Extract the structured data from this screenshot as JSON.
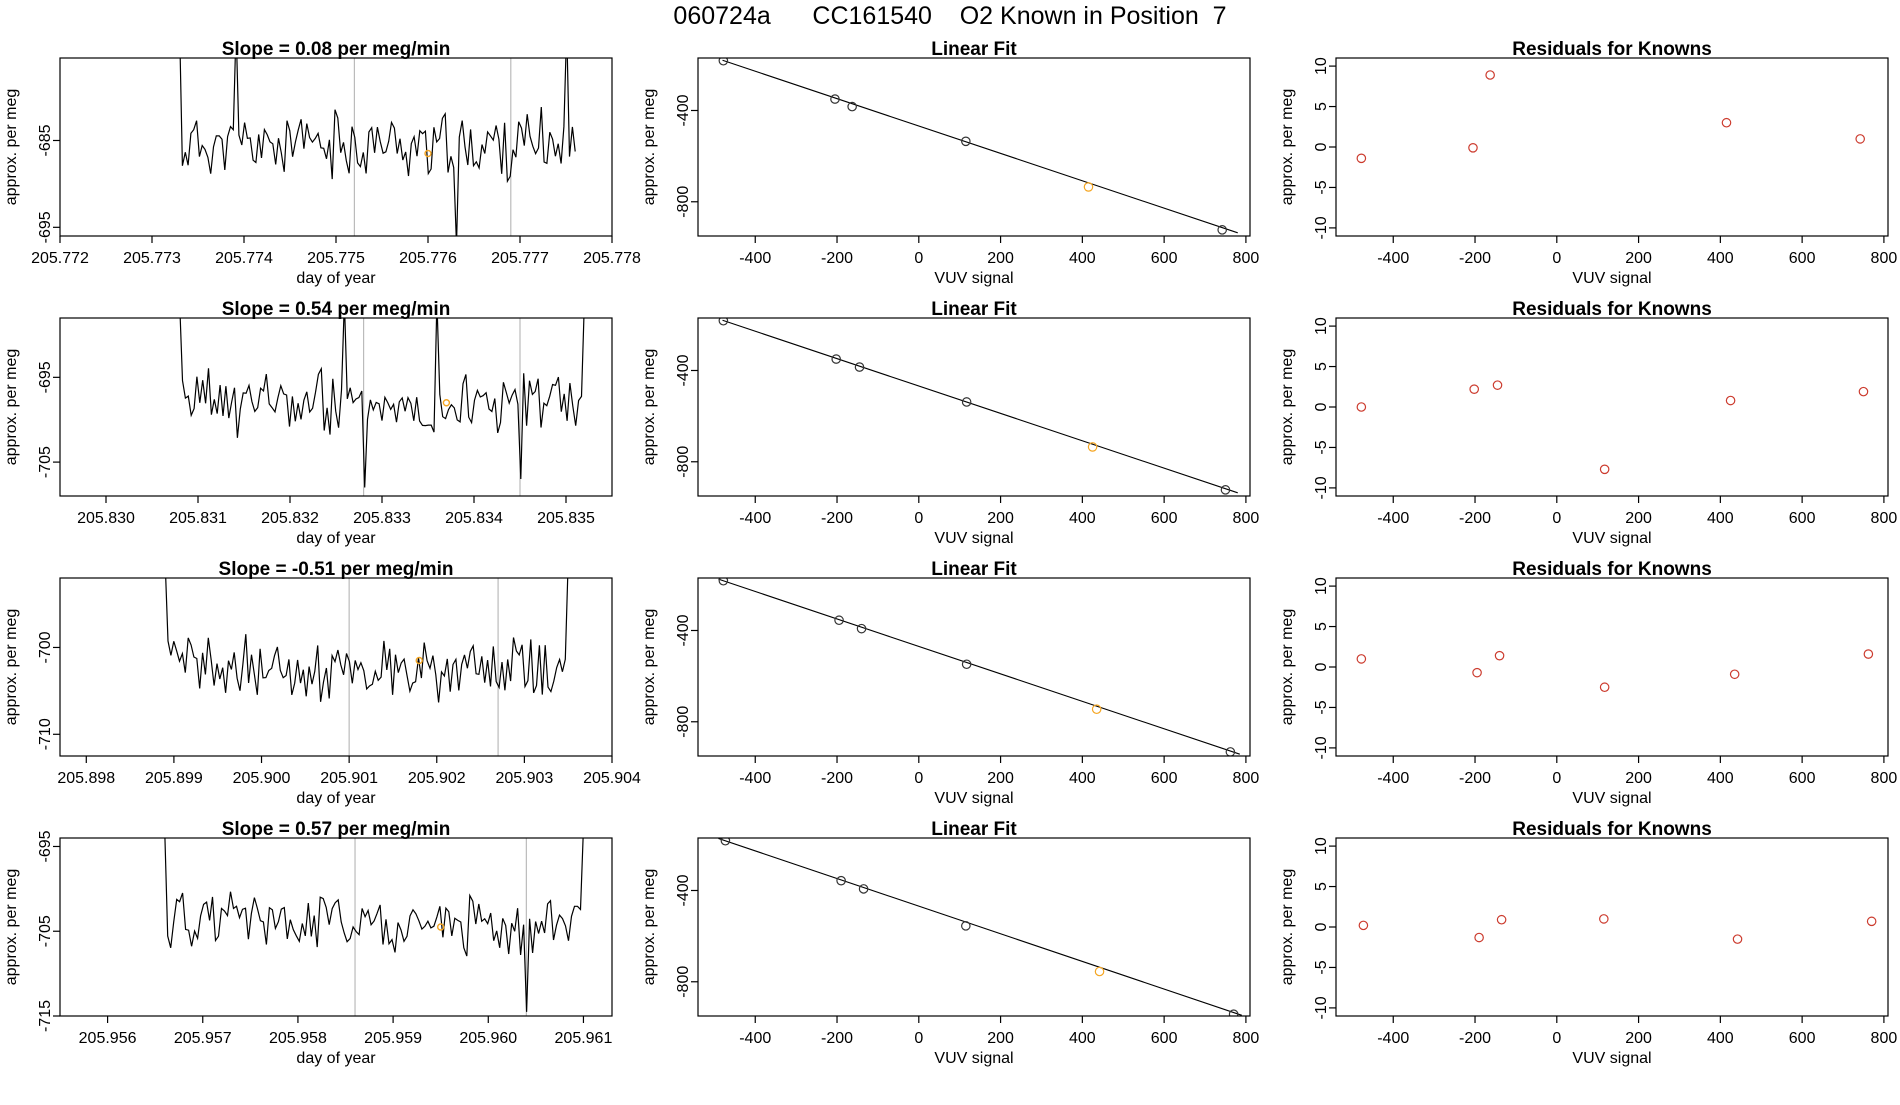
{
  "title": "060724a      CC161540    O2 Known in Position  7",
  "colors": {
    "trace": "#000000",
    "known_point": "#f5a623",
    "residual": "#cc3b2e",
    "guide": "#bbbbbb",
    "fit_point": "#333333"
  },
  "chart_data": [
    {
      "type": "line",
      "title": "Slope =  0.08  per meg/min",
      "xlabel": "day of year",
      "ylabel": "approx. per meg",
      "xlim": [
        205.772,
        205.778
      ],
      "ylim": [
        -696,
        -675.5
      ],
      "xticks": [
        "205.772",
        "205.773",
        "205.774",
        "205.775",
        "205.776",
        "205.777",
        "205.778"
      ],
      "xtick_values": [
        205.772,
        205.773,
        205.774,
        205.775,
        205.776,
        205.777,
        205.778
      ],
      "yticks": [
        "-685",
        "-695"
      ],
      "ytick_values": [
        -685,
        -695
      ],
      "vlines": [
        205.7752,
        205.7769
      ],
      "known_point": {
        "x": 205.776,
        "y": -686.5
      },
      "series": {
        "x_start": 205.7733,
        "x_end": 205.7776,
        "baseline": -685.5,
        "noise": 3,
        "seed": 11,
        "spikes": [
          {
            "x": 205.7733,
            "y": -672
          },
          {
            "x": 205.7739,
            "y": -672
          },
          {
            "x": 205.7763,
            "y": -697
          },
          {
            "x": 205.7775,
            "y": -672
          }
        ]
      }
    },
    {
      "type": "line",
      "title": "Linear Fit",
      "xlabel": "VUV signal",
      "ylabel": "approx. per meg",
      "xlim": [
        -540,
        810
      ],
      "ylim": [
        -950,
        -170
      ],
      "xticks": [
        "-400",
        "-200",
        "0",
        "200",
        "400",
        "600",
        "800"
      ],
      "xtick_values": [
        -400,
        -200,
        0,
        200,
        400,
        600,
        800
      ],
      "yticks": [
        "-400",
        "-800"
      ],
      "ytick_values": [
        -400,
        -800
      ],
      "points": [
        {
          "x": -478,
          "y": -182
        },
        {
          "x": -205,
          "y": -350
        },
        {
          "x": -163,
          "y": -383
        },
        {
          "x": 115,
          "y": -535
        },
        {
          "x": 415,
          "y": -735,
          "known": true
        },
        {
          "x": 742,
          "y": -923
        }
      ],
      "line": {
        "x1": -480,
        "y1": -180,
        "x2": 780,
        "y2": -936
      }
    },
    {
      "type": "scatter",
      "title": "Residuals for Knowns",
      "xlabel": "VUV signal",
      "ylabel": "approx. per meg",
      "xlim": [
        -540,
        810
      ],
      "ylim": [
        -11,
        11
      ],
      "xticks": [
        "-400",
        "-200",
        "0",
        "200",
        "400",
        "600",
        "800"
      ],
      "xtick_values": [
        -400,
        -200,
        0,
        200,
        400,
        600,
        800
      ],
      "yticks": [
        "-10",
        "-5",
        "0",
        "5",
        "10"
      ],
      "ytick_values": [
        -10,
        -5,
        0,
        5,
        10
      ],
      "points": [
        {
          "x": -478,
          "y": -1.4
        },
        {
          "x": -205,
          "y": -0.1
        },
        {
          "x": -163,
          "y": 8.9
        },
        {
          "x": 415,
          "y": 3.0
        },
        {
          "x": 742,
          "y": 1.0
        }
      ]
    },
    {
      "type": "line",
      "title": "Slope =  0.54  per meg/min",
      "xlabel": "day of year",
      "ylabel": "approx. per meg",
      "xlim": [
        205.8295,
        205.8355
      ],
      "ylim": [
        -709,
        -688
      ],
      "xticks": [
        "205.830",
        "205.831",
        "205.832",
        "205.833",
        "205.834",
        "205.835"
      ],
      "xtick_values": [
        205.83,
        205.831,
        205.832,
        205.833,
        205.834,
        205.835
      ],
      "yticks": [
        "-695",
        "-705"
      ],
      "ytick_values": [
        -695,
        -705
      ],
      "vlines": [
        205.8328,
        205.8345
      ],
      "known_point": {
        "x": 205.8337,
        "y": -698
      },
      "series": {
        "x_start": 205.8308,
        "x_end": 205.8352,
        "baseline": -698,
        "noise": 3,
        "seed": 23,
        "spikes": [
          {
            "x": 205.8308,
            "y": -686
          },
          {
            "x": 205.8326,
            "y": -686
          },
          {
            "x": 205.8328,
            "y": -708
          },
          {
            "x": 205.8336,
            "y": -686
          },
          {
            "x": 205.8345,
            "y": -707
          },
          {
            "x": 205.8352,
            "y": -686
          }
        ]
      }
    },
    {
      "type": "line",
      "title": "Linear Fit",
      "xlabel": "VUV signal",
      "ylabel": "approx. per meg",
      "xlim": [
        -540,
        810
      ],
      "ylim": [
        -950,
        -170
      ],
      "xticks": [
        "-400",
        "-200",
        "0",
        "200",
        "400",
        "600",
        "800"
      ],
      "xtick_values": [
        -400,
        -200,
        0,
        200,
        400,
        600,
        800
      ],
      "yticks": [
        "-400",
        "-800"
      ],
      "ytick_values": [
        -400,
        -800
      ],
      "points": [
        {
          "x": -478,
          "y": -182
        },
        {
          "x": -202,
          "y": -350
        },
        {
          "x": -145,
          "y": -385
        },
        {
          "x": 117,
          "y": -538
        },
        {
          "x": 425,
          "y": -735,
          "known": true
        },
        {
          "x": 750,
          "y": -923
        }
      ],
      "line": {
        "x1": -480,
        "y1": -180,
        "x2": 780,
        "y2": -936
      }
    },
    {
      "type": "scatter",
      "title": "Residuals for Knowns",
      "xlabel": "VUV signal",
      "ylabel": "approx. per meg",
      "xlim": [
        -540,
        810
      ],
      "ylim": [
        -11,
        11
      ],
      "xticks": [
        "-400",
        "-200",
        "0",
        "200",
        "400",
        "600",
        "800"
      ],
      "xtick_values": [
        -400,
        -200,
        0,
        200,
        400,
        600,
        800
      ],
      "yticks": [
        "-10",
        "-5",
        "0",
        "5",
        "10"
      ],
      "ytick_values": [
        -10,
        -5,
        0,
        5,
        10
      ],
      "points": [
        {
          "x": -478,
          "y": 0.0
        },
        {
          "x": -202,
          "y": 2.2
        },
        {
          "x": -145,
          "y": 2.7
        },
        {
          "x": 117,
          "y": -7.7
        },
        {
          "x": 425,
          "y": 0.8
        },
        {
          "x": 750,
          "y": 1.9
        }
      ]
    },
    {
      "type": "line",
      "title": "Slope =  -0.51  per meg/min",
      "xlabel": "day of year",
      "ylabel": "approx. per meg",
      "xlim": [
        205.8977,
        205.904
      ],
      "ylim": [
        -712.5,
        -692
      ],
      "xticks": [
        "205.898",
        "205.899",
        "205.900",
        "205.901",
        "205.902",
        "205.903",
        "205.904"
      ],
      "xtick_values": [
        205.898,
        205.899,
        205.9,
        205.901,
        205.902,
        205.903,
        205.904
      ],
      "yticks": [
        "-700",
        "-710"
      ],
      "ytick_values": [
        -700,
        -710
      ],
      "vlines": [
        205.901,
        205.9027
      ],
      "known_point": {
        "x": 205.9018,
        "y": -701.5
      },
      "series": {
        "x_start": 205.8989,
        "x_end": 205.9035,
        "baseline": -702.5,
        "noise": 2.8,
        "seed": 37,
        "spikes": [
          {
            "x": 205.8989,
            "y": -690
          },
          {
            "x": 205.9035,
            "y": -690
          }
        ]
      }
    },
    {
      "type": "line",
      "title": "Linear Fit",
      "xlabel": "VUV signal",
      "ylabel": "approx. per meg",
      "xlim": [
        -540,
        810
      ],
      "ylim": [
        -950,
        -170
      ],
      "xticks": [
        "-400",
        "-200",
        "0",
        "200",
        "400",
        "600",
        "800"
      ],
      "xtick_values": [
        -400,
        -200,
        0,
        200,
        400,
        600,
        800
      ],
      "yticks": [
        "-400",
        "-800"
      ],
      "ytick_values": [
        -400,
        -800
      ],
      "points": [
        {
          "x": -478,
          "y": -182
        },
        {
          "x": -195,
          "y": -355
        },
        {
          "x": -140,
          "y": -392
        },
        {
          "x": 117,
          "y": -548
        },
        {
          "x": 435,
          "y": -745,
          "known": true
        },
        {
          "x": 762,
          "y": -932
        }
      ],
      "line": {
        "x1": -490,
        "y1": -175,
        "x2": 785,
        "y2": -942
      }
    },
    {
      "type": "scatter",
      "title": "Residuals for Knowns",
      "xlabel": "VUV signal",
      "ylabel": "approx. per meg",
      "xlim": [
        -540,
        810
      ],
      "ylim": [
        -11,
        11
      ],
      "xticks": [
        "-400",
        "-200",
        "0",
        "200",
        "400",
        "600",
        "800"
      ],
      "xtick_values": [
        -400,
        -200,
        0,
        200,
        400,
        600,
        800
      ],
      "yticks": [
        "-10",
        "-5",
        "0",
        "5",
        "10"
      ],
      "ytick_values": [
        -10,
        -5,
        0,
        5,
        10
      ],
      "points": [
        {
          "x": -478,
          "y": 1.0
        },
        {
          "x": -195,
          "y": -0.7
        },
        {
          "x": -140,
          "y": 1.4
        },
        {
          "x": 117,
          "y": -2.5
        },
        {
          "x": 435,
          "y": -0.9
        },
        {
          "x": 762,
          "y": 1.6
        }
      ]
    },
    {
      "type": "line",
      "title": "Slope =  0.57  per meg/min",
      "xlabel": "day of year",
      "ylabel": "approx. per meg",
      "xlim": [
        205.9555,
        205.9613
      ],
      "ylim": [
        -715,
        -694
      ],
      "xticks": [
        "205.956",
        "205.957",
        "205.958",
        "205.959",
        "205.960",
        "205.961"
      ],
      "xtick_values": [
        205.956,
        205.957,
        205.958,
        205.959,
        205.96,
        205.961
      ],
      "yticks": [
        "-695",
        "-705",
        "-715"
      ],
      "ytick_values": [
        -695,
        -705,
        -715
      ],
      "vlines": [
        205.9586,
        205.9604
      ],
      "known_point": {
        "x": 205.9595,
        "y": -704.5
      },
      "series": {
        "x_start": 205.9566,
        "x_end": 205.961,
        "baseline": -704,
        "noise": 2.8,
        "seed": 51,
        "spikes": [
          {
            "x": 205.9566,
            "y": -693
          },
          {
            "x": 205.9604,
            "y": -714.5
          },
          {
            "x": 205.961,
            "y": -693
          }
        ]
      }
    },
    {
      "type": "line",
      "title": "Linear Fit",
      "xlabel": "VUV signal",
      "ylabel": "approx. per meg",
      "xlim": [
        -540,
        810
      ],
      "ylim": [
        -950,
        -170
      ],
      "xticks": [
        "-400",
        "-200",
        "0",
        "200",
        "400",
        "600",
        "800"
      ],
      "xtick_values": [
        -400,
        -200,
        0,
        200,
        400,
        600,
        800
      ],
      "yticks": [
        "-400",
        "-800"
      ],
      "ytick_values": [
        -400,
        -800
      ],
      "points": [
        {
          "x": -473,
          "y": -182
        },
        {
          "x": -190,
          "y": -357
        },
        {
          "x": -135,
          "y": -393
        },
        {
          "x": 115,
          "y": -555
        },
        {
          "x": 442,
          "y": -755,
          "known": true
        },
        {
          "x": 770,
          "y": -942
        }
      ],
      "line": {
        "x1": -490,
        "y1": -172,
        "x2": 790,
        "y2": -947
      }
    },
    {
      "type": "scatter",
      "title": "Residuals for Knowns",
      "xlabel": "VUV signal",
      "ylabel": "approx. per meg",
      "xlim": [
        -540,
        810
      ],
      "ylim": [
        -11,
        11
      ],
      "xticks": [
        "-400",
        "-200",
        "0",
        "200",
        "400",
        "600",
        "800"
      ],
      "xtick_values": [
        -400,
        -200,
        0,
        200,
        400,
        600,
        800
      ],
      "yticks": [
        "-10",
        "-5",
        "0",
        "5",
        "10"
      ],
      "ytick_values": [
        -10,
        -5,
        0,
        5,
        10
      ],
      "points": [
        {
          "x": -473,
          "y": 0.2
        },
        {
          "x": -190,
          "y": -1.3
        },
        {
          "x": -135,
          "y": 0.9
        },
        {
          "x": 115,
          "y": 1.0
        },
        {
          "x": 442,
          "y": -1.5
        },
        {
          "x": 770,
          "y": 0.7
        }
      ]
    }
  ]
}
